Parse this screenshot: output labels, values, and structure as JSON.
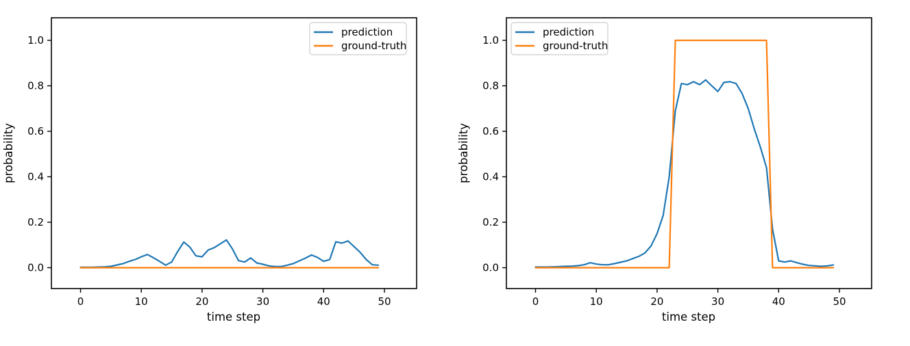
{
  "colors": {
    "prediction": "#1f77b4",
    "ground_truth": "#ff7f0e",
    "axis": "#000000",
    "legend_border": "#cccccc",
    "background": "#ffffff"
  },
  "chart_data": [
    {
      "type": "line",
      "title": "",
      "xlabel": "time step",
      "ylabel": "probability",
      "x_ticks": [
        0,
        10,
        20,
        30,
        40,
        50
      ],
      "y_ticks": [
        0.0,
        0.2,
        0.4,
        0.6,
        0.8,
        1.0
      ],
      "xlim": [
        -4.8,
        55.3
      ],
      "ylim": [
        -0.09,
        1.1
      ],
      "grid": false,
      "legend_position": "upper-right",
      "x": [
        0,
        1,
        2,
        3,
        4,
        5,
        6,
        7,
        8,
        9,
        10,
        11,
        12,
        13,
        14,
        15,
        16,
        17,
        18,
        19,
        20,
        21,
        22,
        23,
        24,
        25,
        26,
        27,
        28,
        29,
        30,
        31,
        32,
        33,
        34,
        35,
        36,
        37,
        38,
        39,
        40,
        41,
        42,
        43,
        44,
        45,
        46,
        47,
        48,
        49
      ],
      "series": [
        {
          "name": "prediction",
          "color": "#1f77b4",
          "values": [
            0.002,
            0.002,
            0.002,
            0.003,
            0.004,
            0.006,
            0.012,
            0.018,
            0.028,
            0.036,
            0.048,
            0.058,
            0.044,
            0.028,
            0.011,
            0.025,
            0.072,
            0.113,
            0.09,
            0.052,
            0.048,
            0.078,
            0.088,
            0.105,
            0.122,
            0.082,
            0.031,
            0.025,
            0.043,
            0.021,
            0.015,
            0.008,
            0.005,
            0.005,
            0.011,
            0.018,
            0.03,
            0.042,
            0.056,
            0.045,
            0.028,
            0.036,
            0.114,
            0.108,
            0.118,
            0.093,
            0.068,
            0.036,
            0.013,
            0.011
          ]
        },
        {
          "name": "ground-truth",
          "color": "#ff7f0e",
          "values": [
            0,
            0,
            0,
            0,
            0,
            0,
            0,
            0,
            0,
            0,
            0,
            0,
            0,
            0,
            0,
            0,
            0,
            0,
            0,
            0,
            0,
            0,
            0,
            0,
            0,
            0,
            0,
            0,
            0,
            0,
            0,
            0,
            0,
            0,
            0,
            0,
            0,
            0,
            0,
            0,
            0,
            0,
            0,
            0,
            0,
            0,
            0,
            0,
            0,
            0
          ]
        }
      ]
    },
    {
      "type": "line",
      "title": "",
      "xlabel": "time step",
      "ylabel": "probability",
      "x_ticks": [
        0,
        10,
        20,
        30,
        40,
        50
      ],
      "y_ticks": [
        0.0,
        0.2,
        0.4,
        0.6,
        0.8,
        1.0
      ],
      "xlim": [
        -4.8,
        55.3
      ],
      "ylim": [
        -0.09,
        1.1
      ],
      "grid": false,
      "legend_position": "upper-left",
      "x": [
        0,
        1,
        2,
        3,
        4,
        5,
        6,
        7,
        8,
        9,
        10,
        11,
        12,
        13,
        14,
        15,
        16,
        17,
        18,
        19,
        20,
        21,
        22,
        23,
        24,
        25,
        26,
        27,
        28,
        29,
        30,
        31,
        32,
        33,
        34,
        35,
        36,
        37,
        38,
        39,
        40,
        41,
        42,
        43,
        44,
        45,
        46,
        47,
        48,
        49
      ],
      "series": [
        {
          "name": "prediction",
          "color": "#1f77b4",
          "values": [
            0.003,
            0.003,
            0.003,
            0.004,
            0.005,
            0.006,
            0.007,
            0.009,
            0.013,
            0.022,
            0.016,
            0.013,
            0.013,
            0.018,
            0.024,
            0.03,
            0.04,
            0.05,
            0.065,
            0.095,
            0.15,
            0.23,
            0.4,
            0.69,
            0.81,
            0.805,
            0.818,
            0.805,
            0.826,
            0.8,
            0.775,
            0.815,
            0.818,
            0.81,
            0.765,
            0.7,
            0.61,
            0.53,
            0.44,
            0.17,
            0.03,
            0.025,
            0.03,
            0.022,
            0.015,
            0.01,
            0.008,
            0.006,
            0.008,
            0.012
          ]
        },
        {
          "name": "ground-truth",
          "color": "#ff7f0e",
          "values": [
            0,
            0,
            0,
            0,
            0,
            0,
            0,
            0,
            0,
            0,
            0,
            0,
            0,
            0,
            0,
            0,
            0,
            0,
            0,
            0,
            0,
            0,
            0,
            1,
            1,
            1,
            1,
            1,
            1,
            1,
            1,
            1,
            1,
            1,
            1,
            1,
            1,
            1,
            1,
            0,
            0,
            0,
            0,
            0,
            0,
            0,
            0,
            0,
            0,
            0
          ]
        }
      ]
    }
  ]
}
